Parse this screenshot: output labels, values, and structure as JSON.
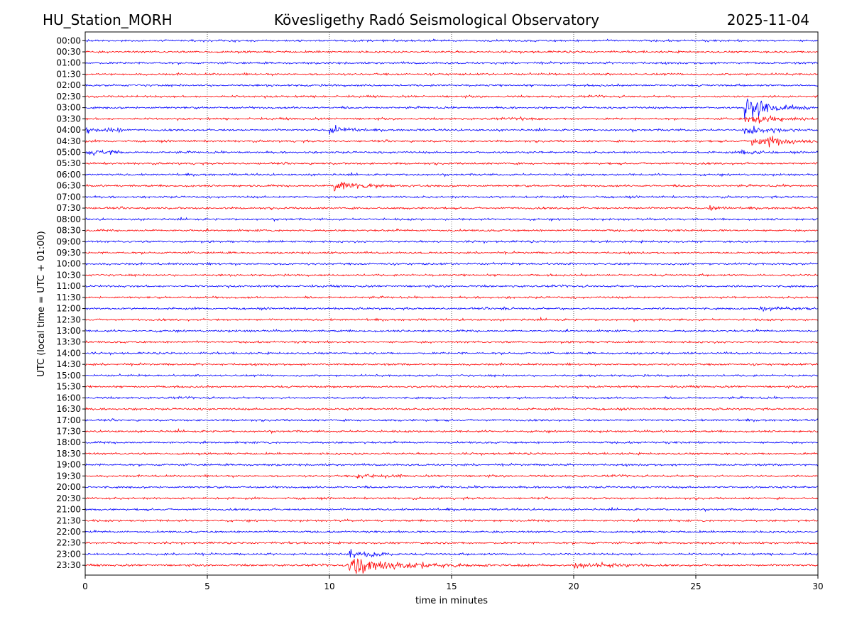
{
  "header": {
    "station": "HU_Station_MORH",
    "observatory": "Kövesligethy Radó Seismological Observatory",
    "date": "2025-11-04"
  },
  "chart_data": {
    "type": "line",
    "title": "Kövesligethy Radó Seismological Observatory",
    "xlabel": "time in minutes",
    "ylabel": "UTC (local time = UTC + 01:00)",
    "xlim": [
      0,
      30
    ],
    "x_ticks": [
      "0",
      "5",
      "10",
      "15",
      "20",
      "25",
      "30"
    ],
    "x_tick_values": [
      0,
      5,
      10,
      15,
      20,
      25,
      30
    ],
    "grid": "vertical dotted at each x tick",
    "colors": {
      "even_rows": "#0000ff",
      "odd_rows": "#ff0000",
      "axis": "#000000"
    },
    "rows": [
      "00:00",
      "00:30",
      "01:00",
      "01:30",
      "02:00",
      "02:30",
      "03:00",
      "03:30",
      "04:00",
      "04:30",
      "05:00",
      "05:30",
      "06:00",
      "06:30",
      "07:00",
      "07:30",
      "08:00",
      "08:30",
      "09:00",
      "09:30",
      "10:00",
      "10:30",
      "11:00",
      "11:30",
      "12:00",
      "12:30",
      "13:00",
      "13:30",
      "14:00",
      "14:30",
      "15:00",
      "15:30",
      "16:00",
      "16:30",
      "17:00",
      "17:30",
      "18:00",
      "18:30",
      "19:00",
      "19:30",
      "20:00",
      "20:30",
      "21:00",
      "21:30",
      "22:00",
      "22:30",
      "23:00",
      "23:30"
    ],
    "baseline_noise": 2.2,
    "events": [
      {
        "row": 6,
        "start": 27.0,
        "amp": 28,
        "decay": 0.9,
        "dur": 3.0
      },
      {
        "row": 7,
        "start": 27.0,
        "amp": 12,
        "decay": 1.2,
        "dur": 3.0
      },
      {
        "row": 7,
        "start": 17.8,
        "amp": 3,
        "decay": 0.8,
        "dur": 1.0
      },
      {
        "row": 8,
        "start": 0.0,
        "amp": 5,
        "decay": 2.0,
        "dur": 1.5
      },
      {
        "row": 8,
        "start": 10.0,
        "amp": 9,
        "decay": 0.6,
        "dur": 1.5
      },
      {
        "row": 8,
        "start": 27.0,
        "amp": 12,
        "decay": 1.0,
        "dur": 3.0
      },
      {
        "row": 9,
        "start": 27.3,
        "amp": 18,
        "decay": 1.0,
        "dur": 2.7
      },
      {
        "row": 10,
        "start": 0.0,
        "amp": 5,
        "decay": 1.5,
        "dur": 1.5
      },
      {
        "row": 10,
        "start": 26.8,
        "amp": 5,
        "decay": 0.8,
        "dur": 1.5
      },
      {
        "row": 13,
        "start": 10.2,
        "amp": 14,
        "decay": 0.8,
        "dur": 4.0
      },
      {
        "row": 15,
        "start": 25.5,
        "amp": 4,
        "decay": 0.6,
        "dur": 1.2
      },
      {
        "row": 24,
        "start": 17.0,
        "amp": 5,
        "decay": 0.2,
        "dur": 0.3
      },
      {
        "row": 24,
        "start": 27.6,
        "amp": 7,
        "decay": 0.7,
        "dur": 2.0
      },
      {
        "row": 39,
        "start": 11.1,
        "amp": 5,
        "decay": 0.8,
        "dur": 2.0
      },
      {
        "row": 46,
        "start": 10.8,
        "amp": 8,
        "decay": 1.0,
        "dur": 2.0
      },
      {
        "row": 47,
        "start": 10.8,
        "amp": 22,
        "decay": 1.8,
        "dur": 12.5
      },
      {
        "row": 47,
        "start": 20.0,
        "amp": 5,
        "decay": 2.0,
        "dur": 3.0
      }
    ]
  }
}
